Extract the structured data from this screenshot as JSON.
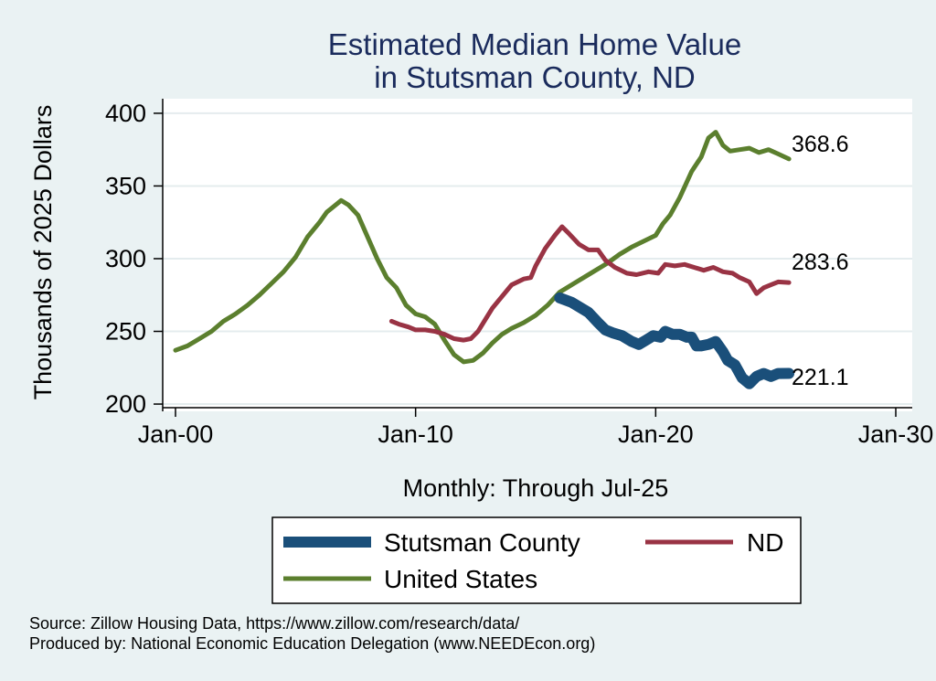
{
  "chart_data": {
    "type": "line",
    "title": [
      "Estimated Median Home Value",
      "in Stutsman County, ND"
    ],
    "xlabel": "Monthly: Through Jul-25",
    "ylabel": "Thousands of 2025 Dollars",
    "xlim": [
      2000,
      2030
    ],
    "ylim": [
      195,
      410
    ],
    "y_ticks": [
      200,
      250,
      300,
      350,
      400
    ],
    "x_ticks": [
      {
        "value": 2000,
        "label": "Jan-00"
      },
      {
        "value": 2010,
        "label": "Jan-10"
      },
      {
        "value": 2020,
        "label": "Jan-20"
      },
      {
        "value": 2030,
        "label": "Jan-30"
      }
    ],
    "grid": true,
    "series": [
      {
        "name": "Stutsman County",
        "color": "#1a4f7a",
        "end_label": "221.1",
        "points": [
          [
            2016.0,
            273
          ],
          [
            2016.5,
            270
          ],
          [
            2016.8,
            267
          ],
          [
            2017.2,
            263
          ],
          [
            2017.6,
            256
          ],
          [
            2017.9,
            251
          ],
          [
            2018.2,
            249
          ],
          [
            2018.6,
            247
          ],
          [
            2019.0,
            243
          ],
          [
            2019.3,
            241
          ],
          [
            2019.6,
            244
          ],
          [
            2019.9,
            247
          ],
          [
            2020.2,
            246
          ],
          [
            2020.4,
            250
          ],
          [
            2020.7,
            248
          ],
          [
            2021.0,
            248
          ],
          [
            2021.3,
            246
          ],
          [
            2021.5,
            246
          ],
          [
            2021.7,
            240
          ],
          [
            2021.9,
            240
          ],
          [
            2022.2,
            241
          ],
          [
            2022.5,
            243
          ],
          [
            2022.8,
            236
          ],
          [
            2023.0,
            230
          ],
          [
            2023.3,
            227
          ],
          [
            2023.6,
            218
          ],
          [
            2023.9,
            214
          ],
          [
            2024.2,
            219
          ],
          [
            2024.5,
            221
          ],
          [
            2024.8,
            219
          ],
          [
            2025.1,
            221
          ],
          [
            2025.55,
            221.1
          ]
        ]
      },
      {
        "name": "ND",
        "color": "#993344",
        "end_label": "283.6",
        "points": [
          [
            2009.0,
            257
          ],
          [
            2009.3,
            255
          ],
          [
            2009.7,
            253
          ],
          [
            2010.0,
            251
          ],
          [
            2010.4,
            251
          ],
          [
            2010.8,
            250
          ],
          [
            2011.2,
            248
          ],
          [
            2011.6,
            245
          ],
          [
            2012.0,
            244
          ],
          [
            2012.3,
            245
          ],
          [
            2012.6,
            250
          ],
          [
            2012.9,
            258
          ],
          [
            2013.2,
            266
          ],
          [
            2013.6,
            274
          ],
          [
            2014.0,
            282
          ],
          [
            2014.5,
            286
          ],
          [
            2014.8,
            287
          ],
          [
            2015.0,
            295
          ],
          [
            2015.4,
            307
          ],
          [
            2015.8,
            316
          ],
          [
            2016.1,
            322
          ],
          [
            2016.4,
            317
          ],
          [
            2016.8,
            310
          ],
          [
            2017.2,
            306
          ],
          [
            2017.6,
            306
          ],
          [
            2017.9,
            299
          ],
          [
            2018.3,
            294
          ],
          [
            2018.8,
            290
          ],
          [
            2019.2,
            289
          ],
          [
            2019.7,
            291
          ],
          [
            2020.1,
            290
          ],
          [
            2020.4,
            296
          ],
          [
            2020.8,
            295
          ],
          [
            2021.2,
            296
          ],
          [
            2021.6,
            294
          ],
          [
            2022.0,
            292
          ],
          [
            2022.4,
            294
          ],
          [
            2022.8,
            291
          ],
          [
            2023.2,
            290
          ],
          [
            2023.5,
            287
          ],
          [
            2023.9,
            284
          ],
          [
            2024.2,
            276
          ],
          [
            2024.5,
            280
          ],
          [
            2024.8,
            282
          ],
          [
            2025.1,
            284
          ],
          [
            2025.55,
            283.6
          ]
        ]
      },
      {
        "name": "United States",
        "color": "#5b7f2e",
        "end_label": "368.6",
        "points": [
          [
            2000.0,
            237
          ],
          [
            2000.5,
            240
          ],
          [
            2001.0,
            245
          ],
          [
            2001.5,
            250
          ],
          [
            2002.0,
            257
          ],
          [
            2002.5,
            262
          ],
          [
            2003.0,
            268
          ],
          [
            2003.5,
            275
          ],
          [
            2004.0,
            283
          ],
          [
            2004.5,
            291
          ],
          [
            2005.0,
            301
          ],
          [
            2005.5,
            315
          ],
          [
            2006.0,
            325
          ],
          [
            2006.3,
            332
          ],
          [
            2006.6,
            336
          ],
          [
            2006.9,
            340
          ],
          [
            2007.2,
            337
          ],
          [
            2007.6,
            330
          ],
          [
            2008.0,
            315
          ],
          [
            2008.4,
            300
          ],
          [
            2008.8,
            287
          ],
          [
            2009.2,
            280
          ],
          [
            2009.6,
            268
          ],
          [
            2010.0,
            262
          ],
          [
            2010.4,
            260
          ],
          [
            2010.8,
            255
          ],
          [
            2011.2,
            244
          ],
          [
            2011.6,
            234
          ],
          [
            2012.0,
            229
          ],
          [
            2012.4,
            230
          ],
          [
            2012.8,
            235
          ],
          [
            2013.2,
            242
          ],
          [
            2013.6,
            248
          ],
          [
            2014.0,
            252
          ],
          [
            2014.5,
            256
          ],
          [
            2015.0,
            261
          ],
          [
            2015.5,
            268
          ],
          [
            2016.0,
            277
          ],
          [
            2016.5,
            282
          ],
          [
            2017.0,
            287
          ],
          [
            2017.5,
            292
          ],
          [
            2018.0,
            297
          ],
          [
            2018.5,
            303
          ],
          [
            2019.0,
            308
          ],
          [
            2019.5,
            312
          ],
          [
            2020.0,
            316
          ],
          [
            2020.3,
            324
          ],
          [
            2020.6,
            330
          ],
          [
            2021.0,
            342
          ],
          [
            2021.5,
            360
          ],
          [
            2021.9,
            370
          ],
          [
            2022.2,
            383
          ],
          [
            2022.5,
            387
          ],
          [
            2022.8,
            378
          ],
          [
            2023.1,
            374
          ],
          [
            2023.5,
            375
          ],
          [
            2023.9,
            376
          ],
          [
            2024.3,
            373
          ],
          [
            2024.7,
            375
          ],
          [
            2025.1,
            372
          ],
          [
            2025.55,
            368.6
          ]
        ]
      }
    ],
    "legend": {
      "placement": "bottom",
      "entries": [
        {
          "name": "Stutsman County",
          "color": "#1a4f7a"
        },
        {
          "name": "ND",
          "color": "#993344"
        },
        {
          "name": "United States",
          "color": "#5b7f2e"
        }
      ]
    },
    "notes": [
      "Source: Zillow Housing Data, https://www.zillow.com/research/data/",
      "Produced by: National Economic Education Delegation (www.NEEDEcon.org)"
    ]
  }
}
